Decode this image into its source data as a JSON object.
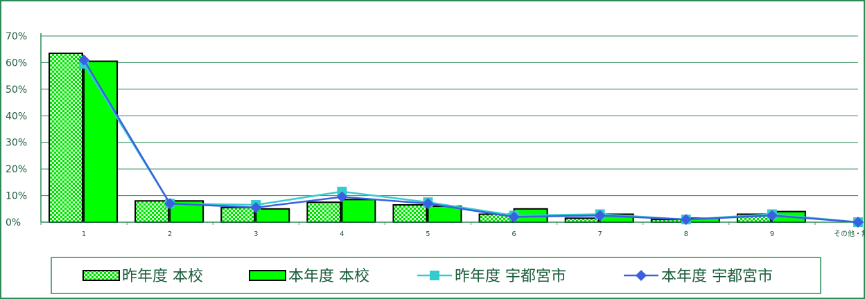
{
  "chart_data": {
    "type": "bar",
    "categories": [
      "1",
      "2",
      "3",
      "4",
      "5",
      "6",
      "7",
      "8",
      "9",
      "その他・無回答"
    ],
    "y_ticks": [
      "0%",
      "10%",
      "20%",
      "30%",
      "40%",
      "50%",
      "60%",
      "70%"
    ],
    "ylim": [
      0,
      70
    ],
    "grid": true,
    "legend_position": "bottom",
    "series": [
      {
        "name": "昨年度 本校",
        "kind": "bar",
        "pattern": "checker",
        "color": "#00e000",
        "values": [
          63.5,
          8,
          5.5,
          7.5,
          6.5,
          3,
          1.5,
          1,
          3,
          0
        ]
      },
      {
        "name": "本年度 本校",
        "kind": "bar",
        "pattern": "solid",
        "color": "#00ff00",
        "values": [
          60.5,
          8,
          5,
          8.5,
          6,
          5,
          3,
          1.5,
          4,
          0
        ]
      },
      {
        "name": "昨年度 宇都宮市",
        "kind": "line",
        "marker": "square",
        "color": "#33cccc",
        "values": [
          59.5,
          7,
          6.5,
          11.5,
          7.5,
          2.5,
          3,
          1,
          3,
          0
        ]
      },
      {
        "name": "本年度 宇都宮市",
        "kind": "line",
        "marker": "diamond",
        "color": "#3a5fe0",
        "values": [
          61,
          7,
          5.5,
          9.5,
          7,
          2,
          2.5,
          1,
          2.5,
          0
        ]
      }
    ]
  }
}
